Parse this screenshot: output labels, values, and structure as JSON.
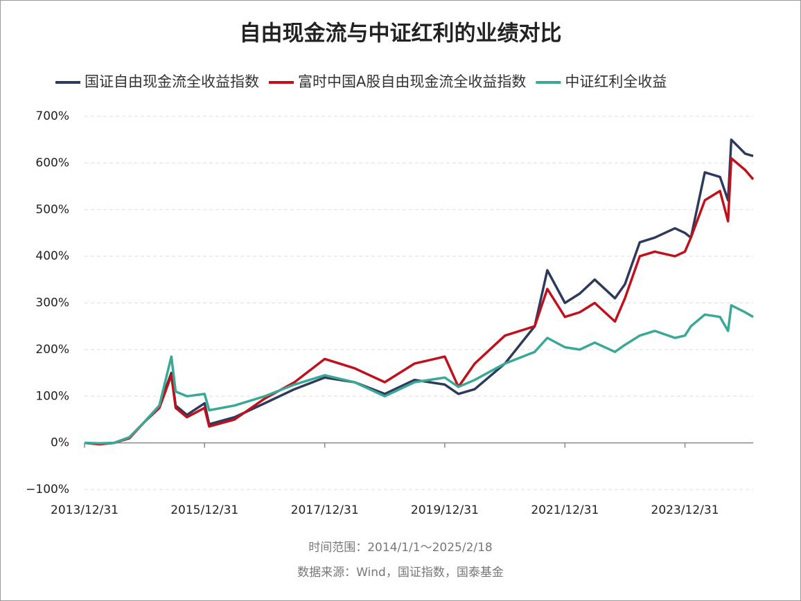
{
  "chart_data": {
    "type": "line",
    "title": "自由现金流与中证红利的业绩对比",
    "x": [
      "2013/12/31",
      "2014/03/31",
      "2014/06/30",
      "2014/09/30",
      "2014/12/31",
      "2015/03/31",
      "2015/06/12",
      "2015/07/08",
      "2015/09/15",
      "2015/12/31",
      "2016/01/28",
      "2016/06/30",
      "2016/12/31",
      "2017/06/30",
      "2017/12/31",
      "2018/06/30",
      "2018/12/31",
      "2019/06/30",
      "2019/12/31",
      "2020/03/23",
      "2020/06/30",
      "2020/12/31",
      "2021/06/30",
      "2021/09/15",
      "2021/12/31",
      "2022/03/31",
      "2022/06/30",
      "2022/10/31",
      "2022/12/31",
      "2023/03/31",
      "2023/06/30",
      "2023/10/31",
      "2023/12/31",
      "2024/02/05",
      "2024/04/30",
      "2024/07/31",
      "2024/09/18",
      "2024/10/08",
      "2024/12/31",
      "2025/02/18"
    ],
    "series": [
      {
        "name": "国证自由现金流全收益指数",
        "color": "#2e3a5c",
        "values": [
          0,
          -2,
          0,
          12,
          45,
          80,
          150,
          80,
          60,
          85,
          40,
          55,
          85,
          115,
          140,
          130,
          105,
          135,
          125,
          105,
          115,
          170,
          250,
          370,
          300,
          320,
          350,
          310,
          340,
          430,
          440,
          460,
          450,
          440,
          580,
          570,
          520,
          650,
          620,
          615
        ]
      },
      {
        "name": "富时中国A股自由现金流全收益指数",
        "color": "#c0101c",
        "values": [
          0,
          -3,
          0,
          10,
          45,
          75,
          145,
          75,
          55,
          75,
          35,
          50,
          95,
          130,
          180,
          160,
          130,
          170,
          185,
          120,
          170,
          230,
          250,
          330,
          270,
          280,
          300,
          260,
          310,
          400,
          410,
          400,
          410,
          440,
          520,
          540,
          475,
          610,
          585,
          565
        ]
      },
      {
        "name": "中证红利全收益",
        "color": "#3aa896",
        "values": [
          0,
          -1,
          0,
          12,
          45,
          80,
          185,
          110,
          100,
          105,
          70,
          80,
          100,
          125,
          145,
          130,
          100,
          130,
          140,
          120,
          135,
          170,
          195,
          225,
          205,
          200,
          215,
          195,
          210,
          230,
          240,
          225,
          230,
          250,
          275,
          270,
          240,
          295,
          280,
          270
        ]
      }
    ],
    "xlim": [
      "2013/12/31",
      "2025/02/18"
    ],
    "xticks": [
      "2013/12/31",
      "2015/12/31",
      "2017/12/31",
      "2019/12/31",
      "2021/12/31",
      "2023/12/31"
    ],
    "ylim": [
      -100,
      700
    ],
    "yticks": [
      {
        "value": -100,
        "label": "−100%"
      },
      {
        "value": 0,
        "label": "0%"
      },
      {
        "value": 100,
        "label": "100%"
      },
      {
        "value": 200,
        "label": "200%"
      },
      {
        "value": 300,
        "label": "300%"
      },
      {
        "value": 400,
        "label": "400%"
      },
      {
        "value": 500,
        "label": "500%"
      },
      {
        "value": 600,
        "label": "600%"
      },
      {
        "value": 700,
        "label": "700%"
      }
    ],
    "grid": true,
    "notes": [
      "时间范围：2014/1/1～2025/2/18",
      "数据来源：Wind，国证指数，国泰基金"
    ]
  }
}
